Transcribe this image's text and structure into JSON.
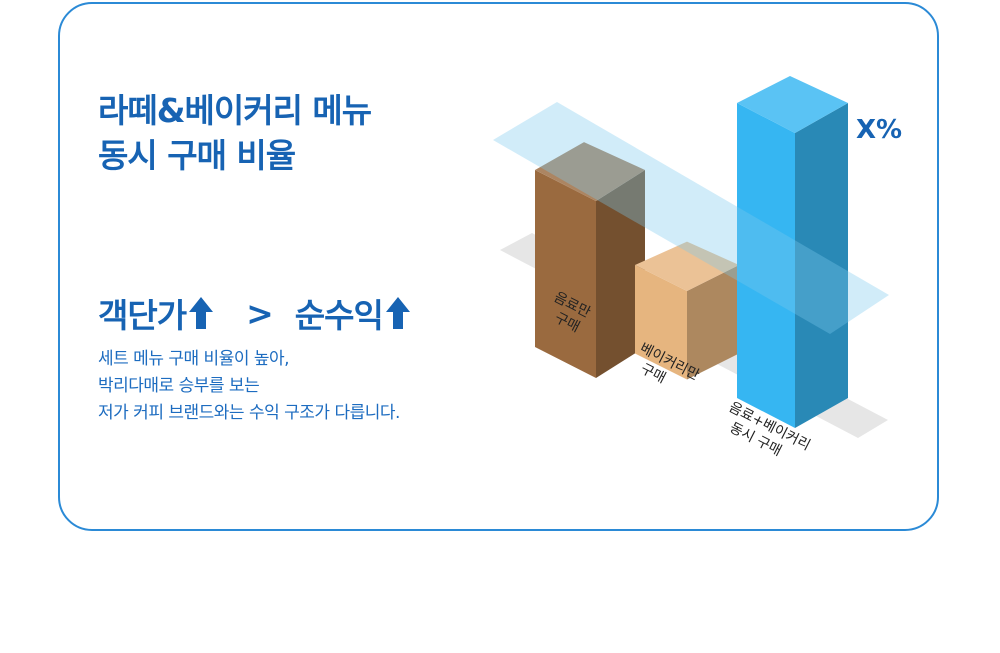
{
  "title": {
    "line1": "라떼&베이커리 메뉴",
    "line2": "동시 구매 비율"
  },
  "comparison": {
    "left": "객단가",
    "operator": ">",
    "right": "순수익"
  },
  "description": [
    "세트 메뉴 구매 비율이 높아,",
    "박리다매로 승부를 보는",
    "저가 커피 브랜드와는 수익 구조가 다릅니다."
  ],
  "colors": {
    "primary": "#1763b3",
    "border": "#2b8ad6"
  },
  "chart_data": {
    "type": "bar",
    "categories": [
      [
        "음료만",
        "구매"
      ],
      [
        "베이커리만",
        "구매"
      ],
      [
        "음료+베이커리",
        "동시 구매"
      ]
    ],
    "values": [
      60,
      30,
      100
    ],
    "data_labels": [
      "",
      "",
      "X%"
    ],
    "bar_colors": [
      "#9a6a3f",
      "#e6b57f",
      "#36b6f2"
    ],
    "reference_plane": "translucent light-blue plane at the level of the first bar",
    "grid": false
  }
}
